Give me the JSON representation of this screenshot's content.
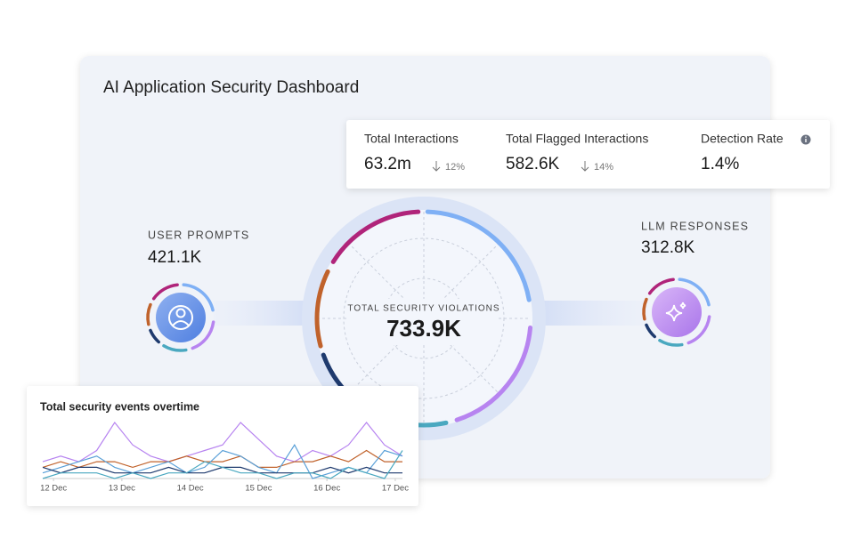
{
  "header": {
    "title": "AI Application Security Dashboard"
  },
  "metrics": [
    {
      "label": "Total Interactions",
      "value": "63.2m",
      "change": "12%"
    },
    {
      "label": "Total Flagged Interactions",
      "value": "582.6K",
      "change": "14%"
    },
    {
      "label": "Detection Rate",
      "value": "1.4%"
    }
  ],
  "user_prompts": {
    "label": "USER PROMPTS",
    "value": "421.1K"
  },
  "llm_responses": {
    "label": "LLM RESPONSES",
    "value": "312.8K"
  },
  "center": {
    "label": "TOTAL SECURITY VIOLATIONS",
    "value": "733.9K"
  },
  "chart_data": {
    "type": "line",
    "title": "Total security events overtime",
    "xlim": [
      0,
      20
    ],
    "ylim": [
      0,
      10
    ],
    "xticks": [
      {
        "value": 0.6,
        "label": "12 Dec"
      },
      {
        "value": 4.4,
        "label": "13 Dec"
      },
      {
        "value": 8.2,
        "label": "14 Dec"
      },
      {
        "value": 12,
        "label": "15 Dec"
      },
      {
        "value": 15.8,
        "label": "16 Dec"
      },
      {
        "value": 19.6,
        "label": "17 Dec"
      }
    ],
    "series": [
      {
        "color": "#b784f0",
        "values": [
          3,
          4,
          3,
          5,
          10,
          6,
          4,
          3,
          4,
          5,
          6,
          10,
          7,
          4,
          3,
          5,
          4,
          6,
          10,
          6,
          4
        ]
      },
      {
        "color": "#c0622b",
        "values": [
          2,
          3,
          2,
          3,
          3,
          2,
          3,
          3,
          4,
          3,
          3,
          4,
          2,
          2,
          3,
          3,
          4,
          3,
          5,
          3,
          3
        ]
      },
      {
        "color": "#5aa0d8",
        "values": [
          1,
          2,
          3,
          4,
          2,
          1,
          2,
          3,
          1,
          2,
          5,
          4,
          2,
          1,
          6,
          0,
          1,
          2,
          1,
          5,
          4
        ]
      },
      {
        "color": "#1e3a6e",
        "values": [
          2,
          1,
          2,
          2,
          1,
          1,
          1,
          2,
          1,
          1,
          2,
          2,
          1,
          1,
          1,
          1,
          2,
          1,
          2,
          1,
          1
        ]
      },
      {
        "color": "#4aa8c0",
        "values": [
          0,
          1,
          1,
          1,
          0,
          1,
          0,
          1,
          1,
          3,
          2,
          1,
          1,
          0,
          1,
          1,
          0,
          2,
          1,
          0,
          5
        ]
      }
    ]
  }
}
